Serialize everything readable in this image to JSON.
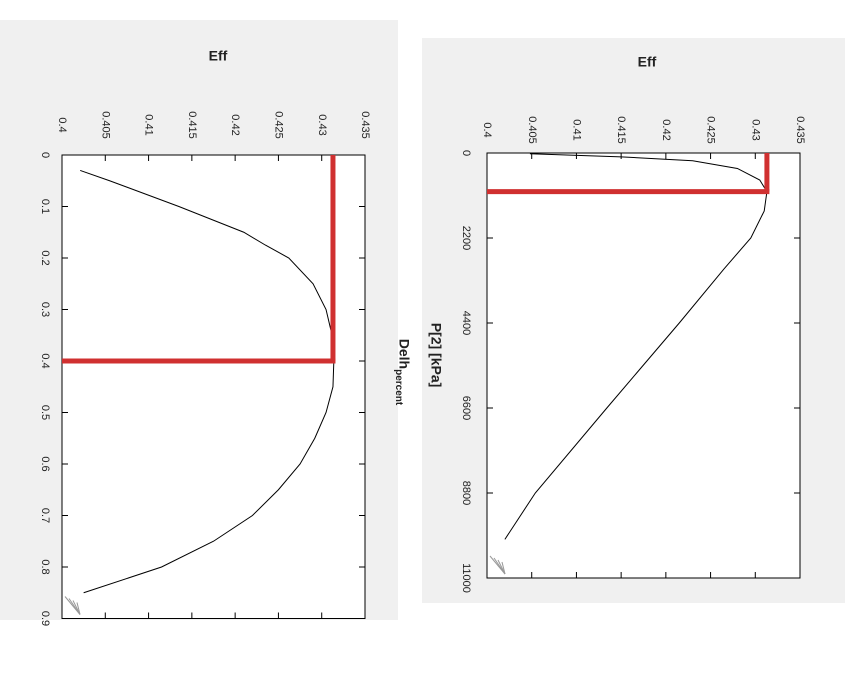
{
  "chart_data": [
    {
      "type": "line",
      "title": "Eff",
      "x_label": "Delh",
      "x_label_sub": "percent",
      "x": [
        0.03,
        0.05,
        0.1,
        0.15,
        0.175,
        0.2,
        0.25,
        0.3,
        0.35,
        0.4,
        0.45,
        0.5,
        0.55,
        0.6,
        0.65,
        0.7,
        0.75,
        0.8,
        0.85
      ],
      "values": [
        0.4021,
        0.4055,
        0.4135,
        0.421,
        0.4235,
        0.4262,
        0.429,
        0.4305,
        0.4312,
        0.4314,
        0.4313,
        0.4305,
        0.4292,
        0.4275,
        0.425,
        0.422,
        0.4175,
        0.4115,
        0.4025
      ],
      "color": "#000000",
      "xlim": [
        0,
        0.9
      ],
      "xticks": [
        0,
        0.1,
        0.2,
        0.3,
        0.4,
        0.5,
        0.6,
        0.7,
        0.8,
        0.9
      ],
      "ylim": [
        0.4,
        0.435
      ],
      "yticks": [
        0.4,
        0.405,
        0.41,
        0.415,
        0.42,
        0.425,
        0.43,
        0.435
      ],
      "marker": {
        "x": 0.4,
        "value": 0.4313,
        "color": "#d03030"
      }
    },
    {
      "type": "line",
      "title": "Eff",
      "x_label": "P[2]  [kPa]",
      "x": [
        20,
        100,
        200,
        400,
        700,
        1000,
        1500,
        2200,
        3000,
        4400,
        6600,
        8800,
        10000
      ],
      "values": [
        0.4048,
        0.415,
        0.423,
        0.428,
        0.4305,
        0.4313,
        0.431,
        0.4295,
        0.4265,
        0.4215,
        0.4134,
        0.4054,
        0.402
      ],
      "color": "#000000",
      "xlim": [
        0,
        11000
      ],
      "xticks": [
        0,
        2200,
        4400,
        6600,
        8800,
        11000
      ],
      "ylim": [
        0.4,
        0.435
      ],
      "yticks": [
        0.4,
        0.405,
        0.41,
        0.415,
        0.42,
        0.425,
        0.43,
        0.435
      ],
      "marker": {
        "x": 1000,
        "value": 0.4313,
        "color": "#d03030"
      }
    }
  ]
}
